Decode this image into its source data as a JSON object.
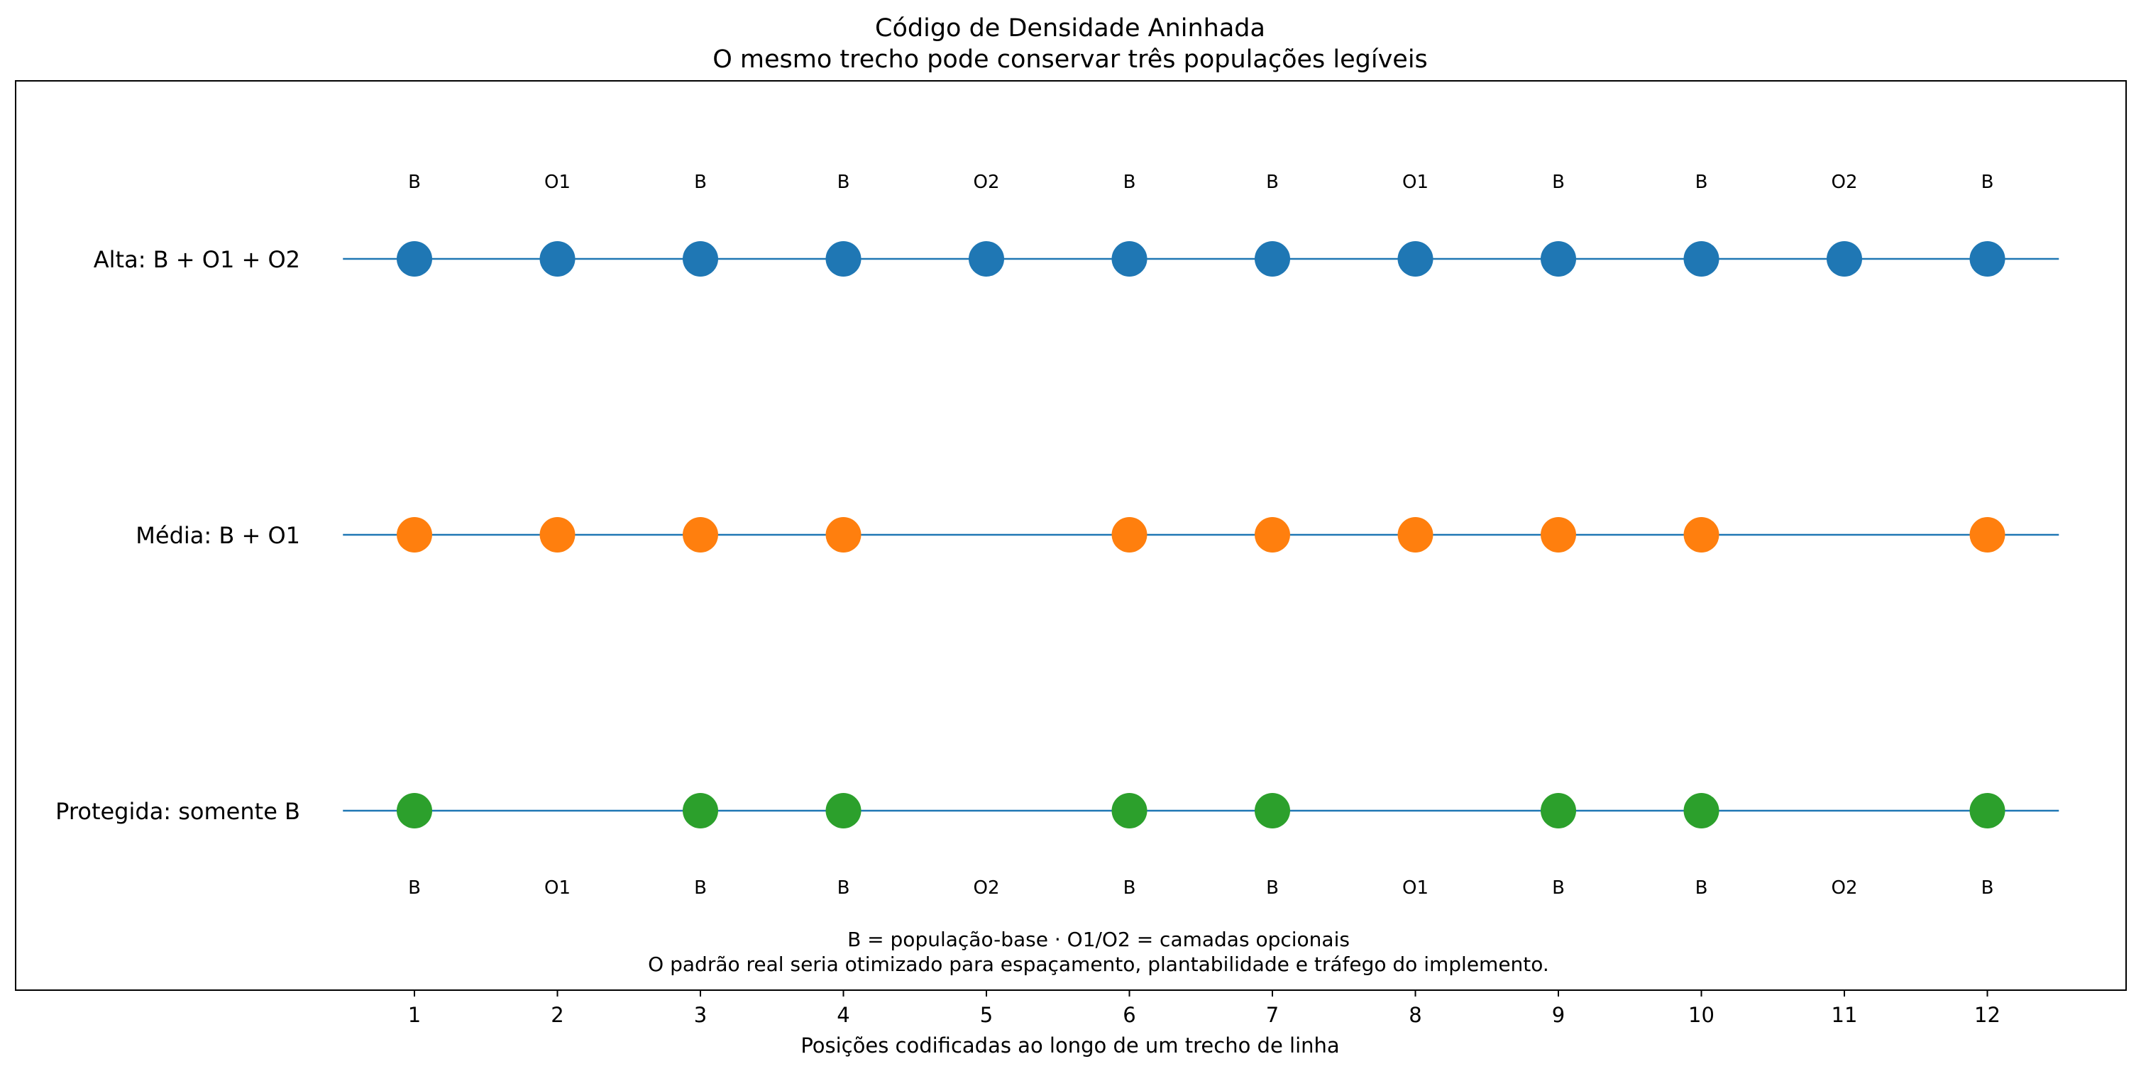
{
  "chart_data": {
    "type": "scatter",
    "title": "Código de Densidade Aninhada",
    "subtitle": "O mesmo trecho pode conservar três populações legíveis",
    "xlabel": "Posições codificadas ao longo de um trecho de linha",
    "ylabel": "",
    "x_ticks": [
      1,
      2,
      3,
      4,
      5,
      6,
      7,
      8,
      9,
      10,
      11,
      12
    ],
    "xlim": [
      0.5,
      12.5
    ],
    "grid": false,
    "position_codes": [
      "B",
      "O1",
      "B",
      "B",
      "O2",
      "B",
      "B",
      "O1",
      "B",
      "B",
      "O2",
      "B"
    ],
    "series": [
      {
        "name": "Alta: B + O1 + O2",
        "color": "#1f77b4",
        "x": [
          1,
          2,
          3,
          4,
          5,
          6,
          7,
          8,
          9,
          10,
          11,
          12
        ]
      },
      {
        "name": "Média: B + O1",
        "color": "#ff7f0e",
        "x": [
          1,
          2,
          3,
          4,
          6,
          7,
          8,
          9,
          10,
          12
        ]
      },
      {
        "name": "Protegida: somente B",
        "color": "#2ca02c",
        "x": [
          1,
          3,
          4,
          6,
          7,
          9,
          10,
          12
        ]
      }
    ],
    "line_color": "#1f77b4",
    "annotations": [
      "B = população-base · O1/O2 = camadas opcionais",
      "O padrão real seria otimizado para espaçamento, plantabilidade e tráfego do implemento."
    ]
  }
}
